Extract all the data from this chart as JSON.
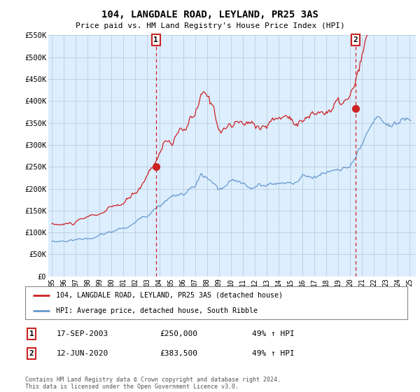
{
  "title": "104, LANGDALE ROAD, LEYLAND, PR25 3AS",
  "subtitle": "Price paid vs. HM Land Registry's House Price Index (HPI)",
  "ylim": [
    0,
    550000
  ],
  "xlim_start": 1994.7,
  "xlim_end": 2025.5,
  "yticks": [
    0,
    50000,
    100000,
    150000,
    200000,
    250000,
    300000,
    350000,
    400000,
    450000,
    500000,
    550000
  ],
  "ytick_labels": [
    "£0",
    "£50K",
    "£100K",
    "£150K",
    "£200K",
    "£250K",
    "£300K",
    "£350K",
    "£400K",
    "£450K",
    "£500K",
    "£550K"
  ],
  "xtick_years": [
    1995,
    1996,
    1997,
    1998,
    1999,
    2000,
    2001,
    2002,
    2003,
    2004,
    2005,
    2006,
    2007,
    2008,
    2009,
    2010,
    2011,
    2012,
    2013,
    2014,
    2015,
    2016,
    2017,
    2018,
    2019,
    2020,
    2021,
    2022,
    2023,
    2024,
    2025
  ],
  "red_line_color": "#cc2222",
  "blue_line_color": "#6699cc",
  "chart_bg_color": "#ddeeff",
  "background_color": "#ffffff",
  "grid_color": "#bbccdd",
  "point1_x": 2003.72,
  "point1_y": 250000,
  "point2_x": 2020.45,
  "point2_y": 383500,
  "legend_label_red": "104, LANGDALE ROAD, LEYLAND, PR25 3AS (detached house)",
  "legend_label_blue": "HPI: Average price, detached house, South Ribble",
  "table_row1": [
    "1",
    "17-SEP-2003",
    "£250,000",
    "49% ↑ HPI"
  ],
  "table_row2": [
    "2",
    "12-JUN-2020",
    "£383,500",
    "49% ↑ HPI"
  ],
  "footnote": "Contains HM Land Registry data © Crown copyright and database right 2024.\nThis data is licensed under the Open Government Licence v3.0."
}
